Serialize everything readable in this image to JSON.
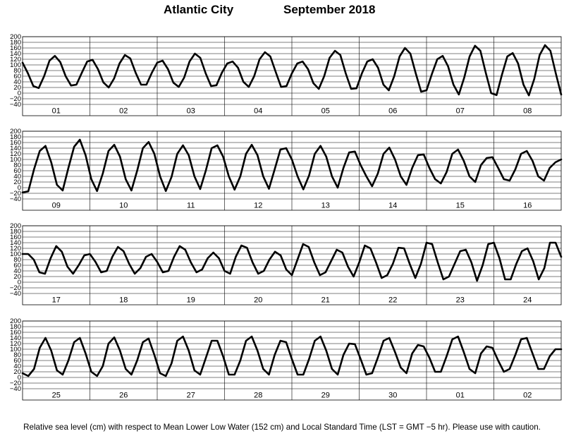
{
  "title": {
    "location": "Atlantic City",
    "period": "September   2018"
  },
  "footer": "Relative sea level (cm) with respect to Mean Lower Low Water (152 cm) and Local Standard Time (LST = GMT −5 hr). Please use with caution.",
  "colors": {
    "line": "#000000",
    "grid": "#000000",
    "background": "#ffffff"
  },
  "chart_data": {
    "type": "line",
    "ylim": [
      -40,
      200
    ],
    "yticks": [
      "200",
      "180",
      "160",
      "140",
      "120",
      "100",
      "80",
      "60",
      "40",
      "20",
      "0",
      "−20",
      "−40"
    ],
    "grid": true,
    "panels": [
      {
        "day_labels": [
          "01",
          "02",
          "03",
          "04",
          "05",
          "06",
          "07",
          "08"
        ],
        "series": {
          "values": [
            108,
            70,
            25,
            18,
            60,
            115,
            132,
            110,
            60,
            27,
            30,
            72,
            112,
            118,
            85,
            38,
            20,
            52,
            105,
            135,
            123,
            72,
            30,
            30,
            72,
            108,
            115,
            85,
            37,
            22,
            55,
            112,
            140,
            125,
            70,
            25,
            28,
            72,
            105,
            112,
            90,
            40,
            22,
            60,
            120,
            145,
            130,
            75,
            22,
            25,
            70,
            105,
            112,
            85,
            35,
            15,
            60,
            125,
            150,
            135,
            70,
            15,
            17,
            70,
            112,
            120,
            90,
            30,
            10,
            60,
            130,
            160,
            140,
            70,
            5,
            10,
            68,
            120,
            132,
            95,
            30,
            -5,
            55,
            130,
            168,
            150,
            72,
            0,
            -7,
            65,
            130,
            142,
            105,
            30,
            -8,
            50,
            135,
            170,
            150,
            70,
            -5
          ]
        }
      },
      {
        "day_labels": [
          "09",
          "10",
          "11",
          "12",
          "13",
          "14",
          "15",
          "16"
        ],
        "series": {
          "values": [
            -17,
            -13,
            65,
            130,
            148,
            90,
            10,
            -10,
            70,
            145,
            170,
            115,
            30,
            -12,
            50,
            130,
            152,
            110,
            30,
            -10,
            60,
            140,
            162,
            120,
            40,
            -12,
            38,
            120,
            150,
            115,
            40,
            -5,
            62,
            140,
            150,
            110,
            40,
            -7,
            40,
            120,
            152,
            115,
            40,
            -4,
            65,
            135,
            140,
            100,
            40,
            -6,
            43,
            120,
            148,
            110,
            40,
            0,
            70,
            125,
            128,
            80,
            40,
            5,
            50,
            120,
            142,
            100,
            40,
            10,
            70,
            115,
            118,
            70,
            30,
            15,
            55,
            120,
            135,
            95,
            40,
            20,
            80,
            105,
            108,
            70,
            30,
            25,
            65,
            120,
            130,
            95,
            40,
            25,
            70,
            90,
            100
          ]
        }
      },
      {
        "day_labels": [
          "17",
          "18",
          "19",
          "20",
          "21",
          "22",
          "23",
          "24"
        ],
        "series": {
          "values": [
            100,
            100,
            80,
            35,
            30,
            85,
            128,
            108,
            55,
            30,
            60,
            95,
            100,
            72,
            35,
            40,
            90,
            125,
            110,
            65,
            30,
            50,
            90,
            100,
            72,
            35,
            40,
            90,
            128,
            115,
            70,
            35,
            45,
            85,
            105,
            85,
            40,
            30,
            90,
            130,
            122,
            70,
            30,
            40,
            80,
            108,
            95,
            45,
            25,
            80,
            135,
            125,
            70,
            25,
            35,
            75,
            115,
            105,
            55,
            20,
            70,
            130,
            120,
            70,
            15,
            25,
            65,
            122,
            120,
            65,
            15,
            65,
            140,
            135,
            70,
            10,
            20,
            65,
            110,
            115,
            70,
            5,
            60,
            135,
            140,
            85,
            10,
            10,
            65,
            110,
            120,
            75,
            10,
            50,
            140,
            140,
            90
          ]
        }
      },
      {
        "day_labels": [
          "25",
          "26",
          "27",
          "28",
          "29",
          "30",
          "01",
          "02"
        ],
        "series": {
          "values": [
            15,
            5,
            30,
            105,
            140,
            95,
            25,
            10,
            60,
            125,
            140,
            85,
            20,
            5,
            40,
            120,
            142,
            95,
            30,
            10,
            60,
            125,
            138,
            80,
            15,
            5,
            50,
            130,
            145,
            95,
            25,
            10,
            70,
            130,
            130,
            75,
            10,
            10,
            60,
            130,
            145,
            95,
            30,
            10,
            80,
            130,
            125,
            65,
            10,
            10,
            65,
            130,
            145,
            95,
            30,
            10,
            80,
            120,
            118,
            65,
            10,
            15,
            70,
            130,
            140,
            90,
            35,
            15,
            85,
            115,
            110,
            70,
            20,
            20,
            75,
            135,
            145,
            90,
            30,
            15,
            85,
            110,
            105,
            60,
            20,
            30,
            80,
            135,
            140,
            85,
            30,
            30,
            75,
            100,
            100
          ]
        }
      }
    ]
  }
}
